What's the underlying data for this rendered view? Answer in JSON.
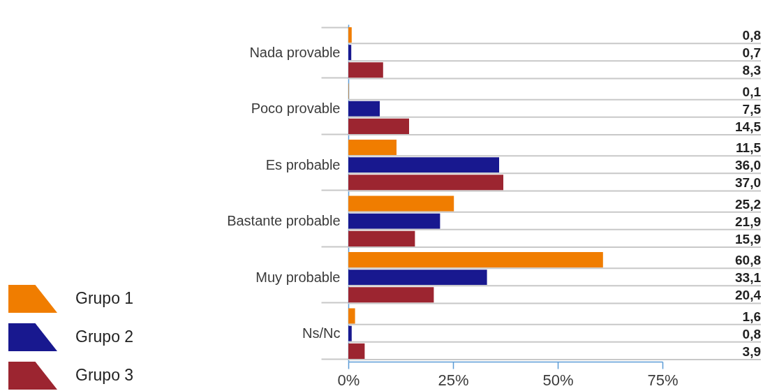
{
  "chart_data": {
    "type": "bar",
    "orientation": "horizontal",
    "categories": [
      "Nada provable",
      "Poco provable",
      "Es probable",
      "Bastante probable",
      "Muy probable",
      "Ns/Nc"
    ],
    "series": [
      {
        "name": "Grupo 1",
        "color": "#f07d00",
        "values": [
          0.8,
          0.1,
          11.5,
          25.2,
          60.8,
          1.6
        ],
        "value_labels": [
          "0,8",
          "0,1",
          "11,5",
          "25,2",
          "60,8",
          "1,6"
        ]
      },
      {
        "name": "Grupo 2",
        "color": "#18188f",
        "values": [
          0.7,
          7.5,
          36.0,
          21.9,
          33.1,
          0.8
        ],
        "value_labels": [
          "0,7",
          "7,5",
          "36,0",
          "21,9",
          "33,1",
          "0,8"
        ]
      },
      {
        "name": "Grupo 3",
        "color": "#9c2530",
        "values": [
          8.3,
          14.5,
          37.0,
          15.9,
          20.4,
          3.9
        ],
        "value_labels": [
          "8,3",
          "14,5",
          "37,0",
          "15,9",
          "20,4",
          "3,9"
        ]
      }
    ],
    "xlim": [
      0,
      75
    ],
    "xticks": [
      {
        "value": 0,
        "label": "0%"
      },
      {
        "value": 25,
        "label": "25%"
      },
      {
        "value": 50,
        "label": "50%"
      },
      {
        "value": 75,
        "label": "75%"
      }
    ],
    "grid": "y",
    "legend": "bottom left"
  }
}
